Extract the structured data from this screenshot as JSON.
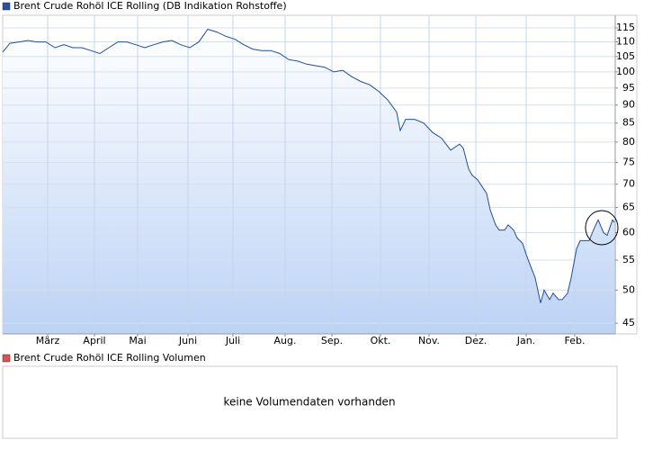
{
  "chart_data": {
    "type": "area",
    "x": [
      0,
      4,
      9,
      14,
      19,
      24,
      29,
      34,
      39,
      44,
      49,
      54,
      59,
      64,
      69,
      74,
      79,
      84,
      89,
      94,
      99,
      104,
      109,
      114,
      119,
      124,
      129,
      134,
      139,
      144,
      149,
      154,
      159,
      164,
      169,
      174,
      179,
      184,
      189,
      194,
      199,
      204,
      209,
      214,
      219,
      221,
      224,
      229,
      234,
      239,
      244,
      249,
      254,
      256,
      259,
      261,
      264,
      269,
      271,
      274,
      276,
      279,
      281,
      284,
      286,
      289,
      291,
      294,
      296,
      299,
      301,
      304,
      306,
      309,
      311,
      314,
      316,
      319,
      321,
      324,
      326,
      329,
      331,
      334,
      336,
      339,
      340
    ],
    "series": [
      {
        "name": "Brent Crude Rohöl ICE Rolling (DB Indikation Rohstoffe)",
        "color": "#1f4e9c",
        "legend_color": "#2b4fa8",
        "values": [
          106.5,
          109.5,
          110,
          110.5,
          110,
          110,
          108,
          109,
          108,
          108,
          107,
          106,
          108,
          110,
          110,
          109,
          108,
          109,
          110,
          110.5,
          109,
          108,
          110,
          114.5,
          113.5,
          112,
          111,
          109,
          107.5,
          107,
          107,
          106,
          104,
          103.5,
          102.5,
          102,
          101.5,
          100,
          100.5,
          98.5,
          97,
          96,
          94,
          91.5,
          88,
          83,
          86,
          86,
          85,
          82.5,
          81,
          78,
          79.5,
          78.5,
          73.5,
          72,
          71,
          68,
          64.5,
          61.5,
          60.5,
          60.5,
          61.5,
          60.5,
          59,
          58,
          56,
          53.5,
          52,
          48,
          50,
          48.5,
          49.5,
          48.5,
          48.5,
          49.5,
          52,
          57,
          58.5,
          58.5,
          58.5,
          61,
          62.5,
          60,
          59.5,
          62.5,
          62
        ]
      }
    ],
    "xlim": [
      0,
      340.5
    ],
    "xticks": [
      {
        "value": 25,
        "label": "März"
      },
      {
        "value": 51,
        "label": "April"
      },
      {
        "value": 75,
        "label": "Mai"
      },
      {
        "value": 103,
        "label": "Juni"
      },
      {
        "value": 128,
        "label": "Juli"
      },
      {
        "value": 157,
        "label": "Aug."
      },
      {
        "value": 183,
        "label": "Sep."
      },
      {
        "value": 210,
        "label": "Okt."
      },
      {
        "value": 237,
        "label": "Nov."
      },
      {
        "value": 263,
        "label": "Dez."
      },
      {
        "value": 291,
        "label": "Jan."
      },
      {
        "value": 318,
        "label": "Feb."
      }
    ],
    "ylim": [
      43.5,
      119.7
    ],
    "log_y": true,
    "yticks": [
      45,
      50,
      55,
      60,
      65,
      70,
      75,
      80,
      85,
      90,
      95,
      100,
      105,
      110,
      115
    ],
    "grid": true
  },
  "volume_panel": {
    "title": "Brent Crude Rohöl ICE Rolling Volumen",
    "legend_color": "#d9534f",
    "message": "keine Volumendaten vorhanden"
  }
}
